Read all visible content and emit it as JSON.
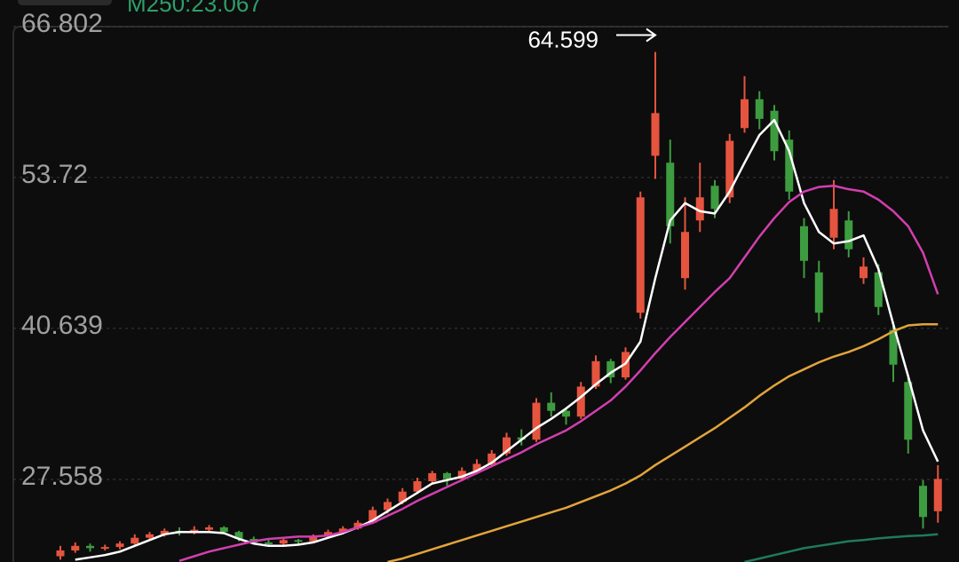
{
  "chart_data": {
    "type": "candlestick",
    "header_text": "M250:23.067",
    "header_color": "#2f9e6a",
    "up_color": "#e5543e",
    "down_color": "#3d9c3f",
    "ylim": [
      20.4,
      69.1
    ],
    "yticks": [
      66.802,
      53.72,
      {
        "value": 40.639,
        "label": "40.639"
      },
      27.558
    ],
    "grid": true,
    "open": [
      20.9,
      21.4,
      21.8,
      21.6,
      21.7,
      22.0,
      22.5,
      22.8,
      23.1,
      22.9,
      23.2,
      23.4,
      23.0,
      22.4,
      22.1,
      22.0,
      22.3,
      22.2,
      22.6,
      23.0,
      23.3,
      23.8,
      24.9,
      25.6,
      26.5,
      27.4,
      28.1,
      27.6,
      28.3,
      28.9,
      29.8,
      31.2,
      31.0,
      34.2,
      33.5,
      33.0,
      35.6,
      37.8,
      36.4,
      42.0,
      55.6,
      55.0,
      45.0,
      50.0,
      53.0,
      52.0,
      58.0,
      60.5,
      59.5,
      57.0,
      49.5,
      45.5,
      48.5,
      50.0,
      45.0,
      45.5,
      40.5,
      36.0,
      27.0,
      24.8
    ],
    "high": [
      21.8,
      22.1,
      22.0,
      21.9,
      22.2,
      22.8,
      23.0,
      23.3,
      23.4,
      23.5,
      23.6,
      23.5,
      23.1,
      22.6,
      22.3,
      22.5,
      22.4,
      22.8,
      23.2,
      23.5,
      24.0,
      25.2,
      25.9,
      26.8,
      27.7,
      28.3,
      28.2,
      28.6,
      29.3,
      30.1,
      31.6,
      31.9,
      34.6,
      35.1,
      33.8,
      36.0,
      38.3,
      38.0,
      39.0,
      52.5,
      64.599,
      57.0,
      52.0,
      55.0,
      53.5,
      57.5,
      62.5,
      61.2,
      60.0,
      57.8,
      50.2,
      46.5,
      53.5,
      50.8,
      46.8,
      46.2,
      41.2,
      36.5,
      27.5,
      28.8
    ],
    "low": [
      20.6,
      21.2,
      21.3,
      21.4,
      21.5,
      21.9,
      22.3,
      22.6,
      22.7,
      22.8,
      23.0,
      22.8,
      22.2,
      21.9,
      21.8,
      21.9,
      21.9,
      22.1,
      22.5,
      22.8,
      23.2,
      23.7,
      24.6,
      25.4,
      26.3,
      27.1,
      27.0,
      27.4,
      28.0,
      28.7,
      29.6,
      30.5,
      30.8,
      33.0,
      32.3,
      32.8,
      35.4,
      35.9,
      36.2,
      41.5,
      53.6,
      48.0,
      44.0,
      49.0,
      50.2,
      51.5,
      57.6,
      57.9,
      55.2,
      51.8,
      45.0,
      41.2,
      47.5,
      46.8,
      44.5,
      41.8,
      36.0,
      29.8,
      23.3,
      23.8
    ],
    "close": [
      21.4,
      21.8,
      21.6,
      21.7,
      22.0,
      22.5,
      22.8,
      23.1,
      22.9,
      23.2,
      23.4,
      23.0,
      22.4,
      22.1,
      22.0,
      22.3,
      22.2,
      22.6,
      23.0,
      23.3,
      23.8,
      24.9,
      25.6,
      26.5,
      27.4,
      28.1,
      27.6,
      28.3,
      28.9,
      29.8,
      31.2,
      31.0,
      34.2,
      33.5,
      33.0,
      35.6,
      37.8,
      36.4,
      38.6,
      52.0,
      59.3,
      49.5,
      49.0,
      52.0,
      51.0,
      56.9,
      60.5,
      58.8,
      56.0,
      52.5,
      46.5,
      42.0,
      51.0,
      47.5,
      46.0,
      42.5,
      37.5,
      31.0,
      24.3,
      27.6
    ],
    "ma_lines": [
      {
        "color": "#ffffff",
        "values": [
          null,
          20.6,
          20.8,
          21.0,
          21.3,
          21.8,
          22.3,
          22.8,
          23.0,
          23.0,
          23.0,
          22.9,
          22.4,
          22.0,
          21.8,
          21.8,
          21.9,
          22.1,
          22.5,
          22.9,
          23.4,
          24.0,
          24.8,
          25.6,
          26.4,
          27.2,
          27.5,
          27.8,
          28.3,
          29.0,
          30.0,
          31.0,
          32.0,
          32.8,
          33.7,
          34.7,
          35.8,
          36.8,
          37.6,
          39.5,
          45.0,
          50.0,
          51.5,
          50.8,
          50.6,
          52.5,
          55.0,
          57.4,
          58.7,
          56.0,
          51.5,
          49.0,
          48.0,
          48.2,
          48.7,
          45.8,
          41.0,
          36.5,
          31.8,
          29.1
        ]
      },
      {
        "color": "#d23fae",
        "values": [
          null,
          null,
          null,
          null,
          null,
          null,
          null,
          null,
          20.5,
          20.9,
          21.3,
          21.6,
          21.9,
          22.2,
          22.4,
          22.5,
          22.6,
          22.6,
          22.7,
          23.0,
          23.4,
          23.8,
          24.4,
          25.0,
          25.7,
          26.3,
          26.9,
          27.5,
          28.1,
          28.7,
          29.3,
          29.9,
          30.6,
          31.2,
          31.8,
          32.6,
          33.5,
          34.4,
          35.6,
          37.0,
          38.5,
          39.9,
          41.2,
          42.5,
          43.8,
          45.0,
          46.8,
          48.6,
          50.2,
          51.6,
          52.5,
          52.9,
          53.0,
          52.7,
          52.5,
          51.8,
          50.8,
          49.5,
          47.2,
          43.6
        ]
      },
      {
        "color": "#e2a43b",
        "values": [
          null,
          null,
          null,
          null,
          null,
          null,
          null,
          null,
          null,
          null,
          null,
          null,
          null,
          null,
          null,
          null,
          null,
          null,
          null,
          null,
          null,
          null,
          20.4,
          20.7,
          21.1,
          21.5,
          21.9,
          22.3,
          22.7,
          23.1,
          23.5,
          23.9,
          24.3,
          24.7,
          25.1,
          25.6,
          26.1,
          26.6,
          27.2,
          27.9,
          28.8,
          29.6,
          30.4,
          31.2,
          32.0,
          32.9,
          33.8,
          34.8,
          35.7,
          36.5,
          37.1,
          37.7,
          38.2,
          38.6,
          39.1,
          39.7,
          40.4,
          40.9,
          41.0,
          41.0
        ]
      },
      {
        "color": "#1f7a5c",
        "values": [
          null,
          null,
          null,
          null,
          null,
          null,
          null,
          null,
          null,
          null,
          null,
          null,
          null,
          null,
          null,
          null,
          null,
          null,
          null,
          null,
          null,
          null,
          null,
          null,
          null,
          null,
          null,
          null,
          null,
          null,
          null,
          null,
          null,
          null,
          null,
          null,
          null,
          null,
          null,
          null,
          null,
          null,
          null,
          null,
          null,
          null,
          20.4,
          20.7,
          21.0,
          21.3,
          21.6,
          21.8,
          22.0,
          22.2,
          22.3,
          22.45,
          22.55,
          22.65,
          22.7,
          22.8
        ]
      }
    ],
    "annotations": [
      64.599
    ]
  }
}
